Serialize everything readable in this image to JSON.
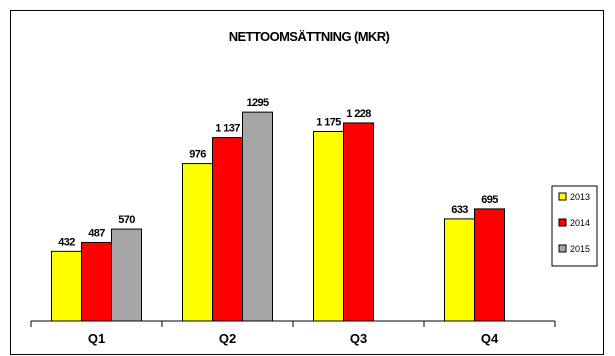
{
  "chart_data": {
    "type": "bar",
    "title": "NETTOOMSÄTTNING (MKR)",
    "xlabel": "",
    "ylabel": "",
    "categories": [
      "Q1",
      "Q2",
      "Q3",
      "Q4"
    ],
    "series": [
      {
        "name": "2013",
        "color": "#ffff00",
        "values": [
          432,
          976,
          1175,
          633
        ],
        "labels": [
          "432",
          "976",
          "1 175",
          "633"
        ]
      },
      {
        "name": "2014",
        "color": "#ff0000",
        "values": [
          487,
          1137,
          1228,
          695
        ],
        "labels": [
          "487",
          "1 137",
          "1 228",
          "695"
        ]
      },
      {
        "name": "2015",
        "color": "#a6a6a6",
        "values": [
          570,
          1295,
          null,
          null
        ],
        "labels": [
          "570",
          "1295",
          "",
          ""
        ]
      }
    ],
    "ylim": [
      0,
      1550
    ],
    "grid": false,
    "legend_position": "right"
  }
}
